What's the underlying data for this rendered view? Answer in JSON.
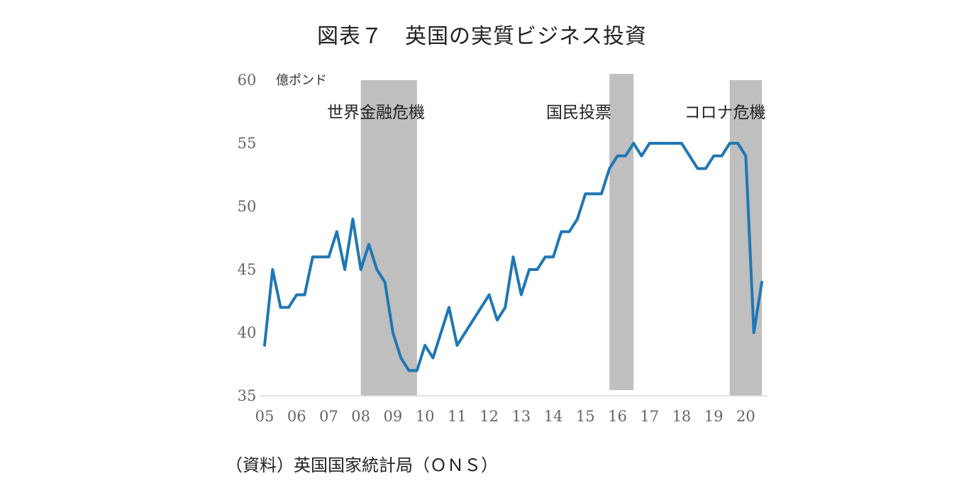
{
  "title": "図表７　英国の実質ビジネス投資",
  "source": "（資料）英国国家統計局（ＯＮＳ）",
  "chart_data": {
    "type": "line",
    "title": "図表７　英国の実質ビジネス投資",
    "ylabel": "億ポンド",
    "ylim": [
      35,
      60
    ],
    "y_ticks": [
      "35",
      "40",
      "45",
      "50",
      "55",
      "60"
    ],
    "x_tick_labels": [
      "05",
      "06",
      "07",
      "08",
      "09",
      "10",
      "11",
      "12",
      "13",
      "14",
      "15",
      "16",
      "17",
      "18",
      "19",
      "20"
    ],
    "grid": false,
    "line_color": "#1f77b4",
    "shade_color": "#bfbfbf",
    "series": [
      {
        "values": [
          39,
          45,
          42,
          42,
          43,
          43,
          46,
          46,
          46,
          48,
          45,
          49,
          45,
          47,
          45,
          44,
          40,
          38,
          37,
          37,
          39,
          38,
          40,
          42,
          39,
          40,
          41,
          42,
          43,
          41,
          42,
          46,
          43,
          45,
          45,
          46,
          46,
          48,
          48,
          49,
          51,
          51,
          51,
          53,
          54,
          54,
          55,
          54,
          55,
          55,
          55,
          55,
          55,
          54,
          53,
          53,
          54,
          54,
          55,
          55,
          54,
          40,
          44
        ]
      }
    ],
    "annotations": [
      {
        "label": "世界金融危機",
        "x_start": 3.0,
        "x_end": 4.75,
        "y_top": 60
      },
      {
        "label": "国民投票",
        "x_start": 10.75,
        "x_end": 11.5,
        "y_top": 60.5
      },
      {
        "label": "コロナ危機",
        "x_start": 14.5,
        "x_end": 15.5,
        "y_top": 60
      }
    ]
  }
}
